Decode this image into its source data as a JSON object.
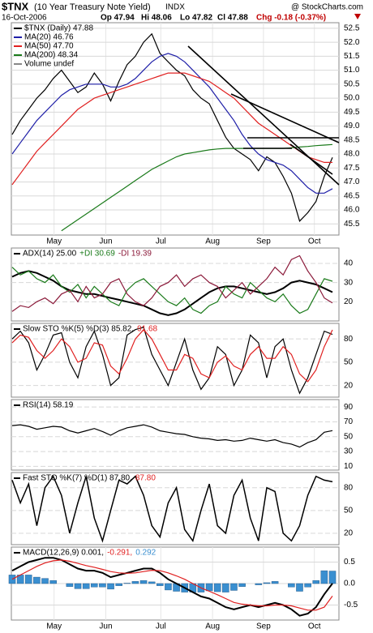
{
  "header": {
    "symbol": "$TNX",
    "name": "(10 Year Treasury Note Yield)",
    "exchange": "INDX",
    "source": "@ StockCharts.com",
    "date": "16-Oct-2006",
    "open": "Op 47.94",
    "high": "Hi 48.06",
    "low": "Lo 47.82",
    "close": "Cl 47.88",
    "change": "Chg -0.18 (-0.37%)"
  },
  "chart_data": [
    {
      "type": "line",
      "ylim": [
        45.1,
        52.7
      ],
      "yticks": [
        45.5,
        {
          "value": 46,
          "label": "46.0"
        },
        46.5,
        {
          "value": 47,
          "label": "47.0"
        },
        47.5,
        {
          "value": 48,
          "label": "48.0"
        },
        48.5,
        {
          "value": 49,
          "label": "49.0"
        },
        49.5,
        {
          "value": 50,
          "label": "50.0"
        },
        50.5,
        {
          "value": 51,
          "label": "51.0"
        },
        51.5,
        {
          "value": 52,
          "label": "52.0"
        },
        52.5
      ],
      "xticks": [
        {
          "value": 5.1,
          "label": "May"
        },
        {
          "value": 11.4,
          "label": "Jun"
        },
        {
          "value": 18.1,
          "label": "Jul"
        },
        {
          "value": 24.4,
          "label": "Aug"
        },
        {
          "value": 30.6,
          "label": "Sep"
        },
        {
          "value": 36.8,
          "label": "Oct"
        }
      ],
      "grid": true,
      "legend": [
        {
          "text": "$TNX (Daily) 47.88",
          "color": "#000000"
        },
        {
          "text": "MA(20) 46.76",
          "color": "#1f1fa8"
        },
        {
          "text": "MA(50) 47.70",
          "color": "#e02020"
        },
        {
          "text": "MA(200) 48.34",
          "color": "#1a7a1a"
        },
        {
          "text": "Volume undef",
          "color": "#888888"
        }
      ],
      "series": [
        {
          "color": "#000000",
          "values": [
            48.7,
            49.2,
            49.6,
            50.0,
            50.3,
            50.7,
            51.0,
            50.6,
            50.2,
            50.4,
            50.9,
            50.5,
            49.9,
            50.6,
            51.2,
            51.5,
            52.0,
            52.3,
            51.6,
            51.3,
            51.0,
            50.8,
            50.3,
            50.0,
            49.8,
            49.2,
            48.6,
            48.2,
            48.0,
            47.8,
            47.4,
            47.9,
            47.7,
            47.2,
            46.6,
            45.6,
            45.9,
            46.3,
            47.2,
            47.88
          ]
        },
        {
          "color": "#1f1fa8",
          "values": [
            48.0,
            48.4,
            48.8,
            49.2,
            49.5,
            49.8,
            50.1,
            50.3,
            50.4,
            50.5,
            50.5,
            50.5,
            50.4,
            50.4,
            50.5,
            50.7,
            51.0,
            51.3,
            51.5,
            51.6,
            51.5,
            51.3,
            51.0,
            50.7,
            50.4,
            50.0,
            49.6,
            49.2,
            48.7,
            48.3,
            48.0,
            47.8,
            47.7,
            47.6,
            47.4,
            47.1,
            46.8,
            46.6,
            46.6,
            46.76
          ]
        },
        {
          "color": "#e02020",
          "values": [
            46.9,
            47.3,
            47.7,
            48.1,
            48.4,
            48.7,
            49.0,
            49.3,
            49.6,
            49.8,
            50.0,
            50.1,
            50.2,
            50.3,
            50.4,
            50.5,
            50.6,
            50.7,
            50.8,
            50.9,
            50.9,
            50.9,
            50.8,
            50.7,
            50.6,
            50.4,
            50.2,
            50.0,
            49.7,
            49.4,
            49.1,
            48.9,
            48.7,
            48.5,
            48.3,
            48.1,
            47.9,
            47.8,
            47.7,
            47.7
          ]
        },
        {
          "color": "#1a7a1a",
          "values": [
            null,
            null,
            null,
            null,
            null,
            null,
            45.25,
            45.45,
            45.65,
            45.85,
            46.05,
            46.25,
            46.45,
            46.65,
            46.85,
            47.05,
            47.25,
            47.45,
            47.6,
            47.75,
            47.9,
            48.0,
            48.05,
            48.1,
            48.15,
            48.18,
            48.2,
            48.2,
            48.2,
            48.2,
            48.2,
            48.2,
            48.2,
            48.2,
            48.22,
            48.25,
            48.27,
            48.3,
            48.32,
            48.34
          ]
        }
      ]
    },
    {
      "type": "line",
      "ylim": [
        10,
        48
      ],
      "yticks": [
        20,
        30,
        40
      ],
      "grid": true,
      "legend": [
        {
          "text": "ADX(14) 25.00",
          "color": "#000000"
        },
        {
          "text": "+DI 30.69",
          "color": "#1a7a1a"
        },
        {
          "text": "-DI 19.39",
          "color": "#8b1a3a"
        }
      ],
      "series": [
        {
          "color": "#000000",
          "width": 2,
          "values": [
            33,
            35,
            36,
            35,
            33,
            31,
            28,
            26,
            25,
            24,
            24,
            23,
            22,
            21,
            20,
            19,
            18,
            16,
            14,
            13,
            14,
            16,
            19,
            22,
            25,
            27,
            28,
            28,
            27,
            26,
            25,
            24,
            25,
            27,
            30,
            31,
            30,
            29,
            27,
            25
          ]
        },
        {
          "color": "#1a7a1a",
          "values": [
            38,
            34,
            36,
            32,
            30,
            34,
            28,
            25,
            29,
            22,
            28,
            24,
            20,
            18,
            26,
            30,
            32,
            28,
            24,
            20,
            18,
            22,
            16,
            14,
            18,
            20,
            28,
            24,
            22,
            30,
            26,
            22,
            20,
            24,
            18,
            14,
            16,
            24,
            32,
            30.69
          ]
        },
        {
          "color": "#8b1a3a",
          "values": [
            15,
            18,
            17,
            20,
            22,
            19,
            24,
            26,
            20,
            28,
            22,
            24,
            30,
            32,
            24,
            20,
            18,
            22,
            28,
            30,
            34,
            28,
            32,
            34,
            30,
            28,
            22,
            26,
            30,
            24,
            28,
            32,
            38,
            34,
            42,
            44,
            36,
            30,
            22,
            19.39
          ]
        }
      ]
    },
    {
      "type": "line",
      "ylim": [
        5,
        100
      ],
      "yticks": [
        20,
        50,
        80
      ],
      "grid": true,
      "legend": [
        {
          "text": "Slow STO %K(5) %D(3) 85.82,",
          "color": "#000000"
        },
        {
          "text": "91.68",
          "color": "#e02020"
        }
      ],
      "series": [
        {
          "color": "#000000",
          "values": [
            80,
            90,
            75,
            40,
            60,
            85,
            88,
            50,
            30,
            70,
            90,
            60,
            20,
            30,
            85,
            92,
            95,
            60,
            40,
            20,
            50,
            80,
            40,
            15,
            30,
            70,
            60,
            20,
            40,
            85,
            75,
            30,
            70,
            80,
            40,
            10,
            30,
            60,
            90,
            85.82
          ]
        },
        {
          "color": "#e02020",
          "values": [
            75,
            85,
            82,
            65,
            55,
            65,
            80,
            70,
            50,
            55,
            75,
            72,
            45,
            35,
            55,
            80,
            92,
            80,
            60,
            40,
            40,
            60,
            55,
            35,
            30,
            50,
            58,
            45,
            40,
            60,
            70,
            55,
            55,
            70,
            60,
            35,
            25,
            40,
            70,
            91.68
          ]
        }
      ]
    },
    {
      "type": "line",
      "ylim": [
        5,
        100
      ],
      "yticks": [
        10,
        30,
        50,
        70,
        90
      ],
      "grid": true,
      "legend": [
        {
          "text": "RSI(14) 58.19",
          "color": "#000000"
        }
      ],
      "series": [
        {
          "color": "#000000",
          "values": [
            65,
            66,
            64,
            60,
            62,
            64,
            63,
            58,
            55,
            58,
            61,
            57,
            52,
            58,
            62,
            64,
            66,
            63,
            58,
            56,
            54,
            53,
            50,
            48,
            47,
            45,
            46,
            44,
            45,
            48,
            46,
            44,
            46,
            42,
            40,
            36,
            42,
            46,
            56,
            58.19
          ]
        }
      ]
    },
    {
      "type": "line",
      "ylim": [
        5,
        100
      ],
      "yticks": [
        20,
        50,
        80
      ],
      "grid": true,
      "legend": [
        {
          "text": "Fast STO %K(7) %D(1) 87.80,",
          "color": "#000000"
        },
        {
          "text": "87.80",
          "color": "#e02020"
        }
      ],
      "series": [
        {
          "color": "#000000",
          "width": 1.5,
          "values": [
            90,
            60,
            85,
            30,
            80,
            95,
            70,
            20,
            60,
            95,
            40,
            10,
            50,
            90,
            85,
            95,
            70,
            30,
            15,
            60,
            80,
            25,
            10,
            50,
            85,
            30,
            20,
            70,
            90,
            40,
            10,
            80,
            75,
            20,
            10,
            30,
            70,
            95,
            90,
            87.8
          ]
        }
      ]
    },
    {
      "type": "line",
      "ylim": [
        -0.85,
        0.85
      ],
      "yticks": [
        -0.5,
        {
          "value": 0,
          "label": "0.0"
        },
        0.5
      ],
      "grid": true,
      "xticks": [
        {
          "value": 5.1,
          "label": "May"
        },
        {
          "value": 11.4,
          "label": "Jun"
        },
        {
          "value": 18.1,
          "label": "Jul"
        },
        {
          "value": 24.4,
          "label": "Aug"
        },
        {
          "value": 30.6,
          "label": "Sep"
        },
        {
          "value": 36.8,
          "label": "Oct"
        }
      ],
      "legend": [
        {
          "text": "MACD(12,26,9) 0.001,",
          "color": "#000000"
        },
        {
          "text": "-0.291,",
          "color": "#e02020"
        },
        {
          "text": "0.292",
          "color": "#3a8fd0"
        }
      ],
      "series": [
        {
          "color": "#3a8fd0",
          "style": "histogram",
          "values": [
            0.2,
            0.2,
            0.2,
            0.15,
            0.12,
            0.07,
            0,
            -0.07,
            -0.12,
            -0.12,
            -0.08,
            -0.08,
            -0.13,
            -0.05,
            0.01,
            0.05,
            0.07,
            0.04,
            -0.05,
            -0.15,
            -0.18,
            -0.2,
            -0.2,
            -0.2,
            -0.17,
            -0.19,
            -0.2,
            -0.16,
            -0.07,
            0,
            -0.03,
            0.02,
            0.05,
            0,
            -0.08,
            -0.18,
            -0.08,
            0.07,
            0.3,
            0.292
          ]
        },
        {
          "color": "#000000",
          "width": 2,
          "values": [
            0.3,
            0.4,
            0.5,
            0.55,
            0.6,
            0.6,
            0.55,
            0.45,
            0.35,
            0.3,
            0.3,
            0.25,
            0.15,
            0.2,
            0.25,
            0.3,
            0.35,
            0.35,
            0.25,
            0.1,
            0.0,
            -0.1,
            -0.2,
            -0.3,
            -0.35,
            -0.45,
            -0.55,
            -0.6,
            -0.55,
            -0.5,
            -0.55,
            -0.5,
            -0.45,
            -0.5,
            -0.6,
            -0.75,
            -0.7,
            -0.55,
            -0.25,
            0.001
          ]
        },
        {
          "color": "#e02020",
          "values": [
            0.1,
            0.2,
            0.3,
            0.4,
            0.48,
            0.53,
            0.55,
            0.52,
            0.47,
            0.42,
            0.38,
            0.33,
            0.28,
            0.25,
            0.24,
            0.25,
            0.28,
            0.31,
            0.3,
            0.25,
            0.18,
            0.1,
            0.0,
            -0.1,
            -0.18,
            -0.26,
            -0.35,
            -0.44,
            -0.48,
            -0.5,
            -0.52,
            -0.52,
            -0.5,
            -0.5,
            -0.52,
            -0.57,
            -0.62,
            -0.62,
            -0.55,
            -0.291
          ]
        }
      ]
    }
  ]
}
